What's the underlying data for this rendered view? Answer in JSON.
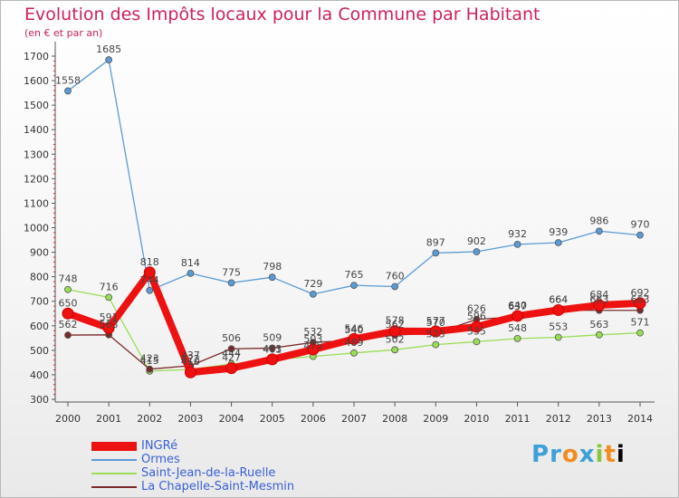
{
  "title": "Evolution des Impôts locaux pour la Commune par Habitant",
  "subtitle": "(en € et par an)",
  "logo_text": "Proxiti",
  "chart_data": {
    "type": "line",
    "title": "Evolution des Impôts locaux pour la Commune par Habitant",
    "subtitle": "(en € et par an)",
    "x": [
      2000,
      2001,
      2002,
      2003,
      2004,
      2005,
      2006,
      2007,
      2008,
      2009,
      2010,
      2011,
      2012,
      2013,
      2014
    ],
    "ylim": [
      300,
      1700
    ],
    "yticks": [
      300,
      400,
      500,
      600,
      700,
      800,
      900,
      1000,
      1100,
      1200,
      1300,
      1400,
      1500,
      1600,
      1700
    ],
    "grid": false,
    "legend_position": "bottom-left",
    "series": [
      {
        "name": "INGRé",
        "color": "#ee1111",
        "values": [
          650,
          591,
          818,
          410,
          427,
          463,
          503,
          546,
          578,
          577,
          596,
          640,
          664,
          684,
          692
        ],
        "labels": [
          "650",
          "591",
          "818",
          "410",
          "427",
          "463",
          "503",
          "546",
          "578",
          "577",
          "596",
          "640",
          "664",
          "684",
          "692"
        ]
      },
      {
        "name": "Ormes",
        "color": "#5b9bd5",
        "values": [
          1558,
          1685,
          744,
          814,
          775,
          798,
          729,
          765,
          760,
          897,
          902,
          932,
          939,
          986,
          970
        ],
        "labels": [
          "1558",
          "1685",
          "744",
          "814",
          "775",
          "798",
          "729",
          "765",
          "760",
          "897",
          "902",
          "932",
          "939",
          "986",
          "970"
        ]
      },
      {
        "name": "Saint-Jean-de-la-Ruelle",
        "color": "#99dd55",
        "values": [
          748,
          716,
          415,
          422,
          444,
          461,
          475,
          489,
          502,
          523,
          535,
          548,
          553,
          563,
          571
        ],
        "labels": [
          "748",
          "716",
          "415",
          "422",
          "444",
          "461",
          "475",
          "489",
          "502",
          "523",
          "535",
          "548",
          "553",
          "563",
          "571"
        ]
      },
      {
        "name": "La Chapelle-Saint-Mesmin",
        "color": "#7a2a2a",
        "values": [
          562,
          563,
          423,
          437,
          506,
          509,
          532,
          540,
          562,
          570,
          626,
          637,
          664,
          663,
          663
        ],
        "labels": [
          "562",
          "563",
          "423",
          "437",
          "506",
          "509",
          "532",
          "540",
          "562",
          "570",
          "626",
          "637",
          "664",
          "663",
          "663"
        ]
      }
    ]
  },
  "legend": [
    {
      "name": "INGRé",
      "color": "#ee1111",
      "thick": true
    },
    {
      "name": "Ormes",
      "color": "#5b9bd5",
      "thick": false
    },
    {
      "name": "Saint-Jean-de-la-Ruelle",
      "color": "#99dd55",
      "thick": false
    },
    {
      "name": "La Chapelle-Saint-Mesmin",
      "color": "#7a2a2a",
      "thick": false
    }
  ]
}
